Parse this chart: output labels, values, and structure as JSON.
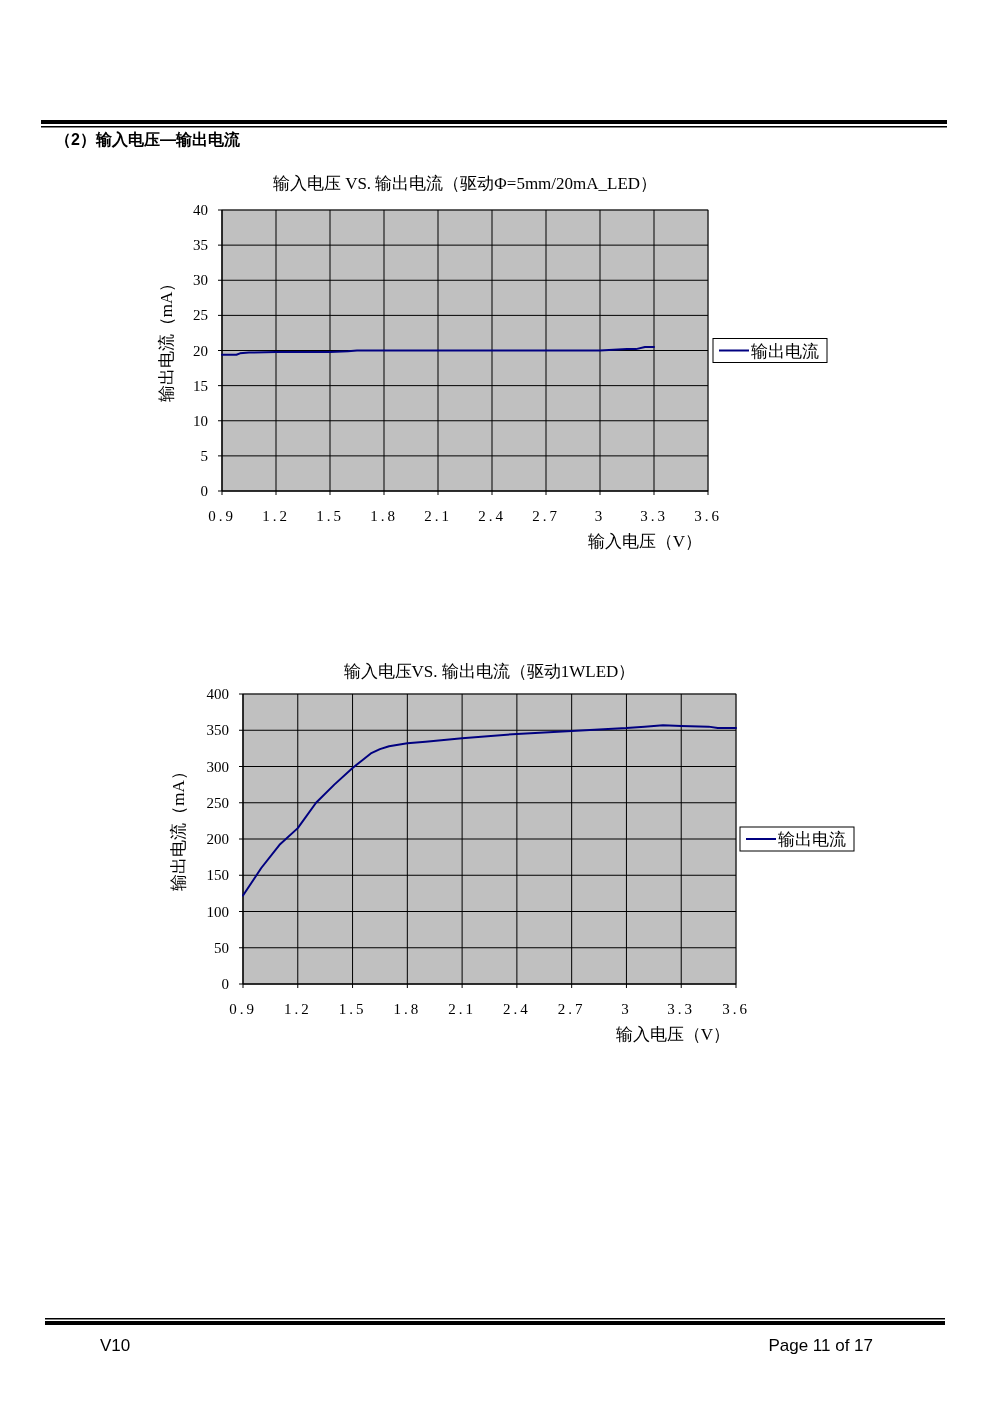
{
  "chart_data": [
    {
      "type": "line",
      "title": "输入电压 VS. 输出电流（驱动Φ=5mm/20mA_LED）",
      "xlabel": "输入电压（V）",
      "ylabel": "输出电流（mA）",
      "annotations": [
        "（2）输入电压—输出电流"
      ],
      "series": [
        {
          "name": "输出电流",
          "color": "#000080",
          "x": [
            0.9,
            0.98,
            1.0,
            1.05,
            1.2,
            1.5,
            1.6,
            1.65,
            2.0,
            2.5,
            3.0,
            3.15,
            3.2,
            3.25,
            3.3
          ],
          "values": [
            19.4,
            19.4,
            19.6,
            19.7,
            19.8,
            19.8,
            19.9,
            20.0,
            20.0,
            20.0,
            20.0,
            20.2,
            20.2,
            20.5,
            20.5
          ]
        }
      ],
      "xlim": [
        0.9,
        3.6
      ],
      "xticks": [
        0.9,
        1.2,
        1.5,
        1.8,
        2.1,
        2.4,
        2.7,
        3,
        3.3,
        3.6
      ],
      "ylim": [
        0,
        40
      ],
      "yticks": [
        0,
        5,
        10,
        15,
        20,
        25,
        30,
        35,
        40
      ],
      "grid": true,
      "legend": "right",
      "marker": "none",
      "line_style": "solid"
    },
    {
      "type": "line",
      "title": "输入电压VS. 输出电流（驱动1WLED）",
      "xlabel": "输入电压（V）",
      "ylabel": "输出电流（mA）",
      "annotations": [
        "V10",
        "Page 11 of 17"
      ],
      "series": [
        {
          "name": "输出电流",
          "color": "#000080",
          "x": [
            0.9,
            1.0,
            1.1,
            1.2,
            1.3,
            1.4,
            1.5,
            1.55,
            1.6,
            1.65,
            1.7,
            1.8,
            1.9,
            2.1,
            2.4,
            2.7,
            3.0,
            3.1,
            3.2,
            3.3,
            3.45,
            3.5,
            3.6
          ],
          "values": [
            122,
            160,
            192,
            215,
            250,
            275,
            298,
            308,
            318,
            324,
            328,
            332,
            334,
            339,
            345,
            349,
            353,
            355,
            357,
            356,
            355,
            353,
            353
          ]
        }
      ],
      "xlim": [
        0.9,
        3.6
      ],
      "xticks": [
        0.9,
        1.2,
        1.5,
        1.8,
        2.1,
        2.4,
        2.7,
        3,
        3.3,
        3.6
      ],
      "ylim": [
        0,
        400
      ],
      "yticks": [
        0,
        50,
        100,
        150,
        200,
        250,
        300,
        350,
        400
      ],
      "grid": true,
      "legend": "right",
      "marker": "none",
      "line_style": "solid"
    }
  ]
}
